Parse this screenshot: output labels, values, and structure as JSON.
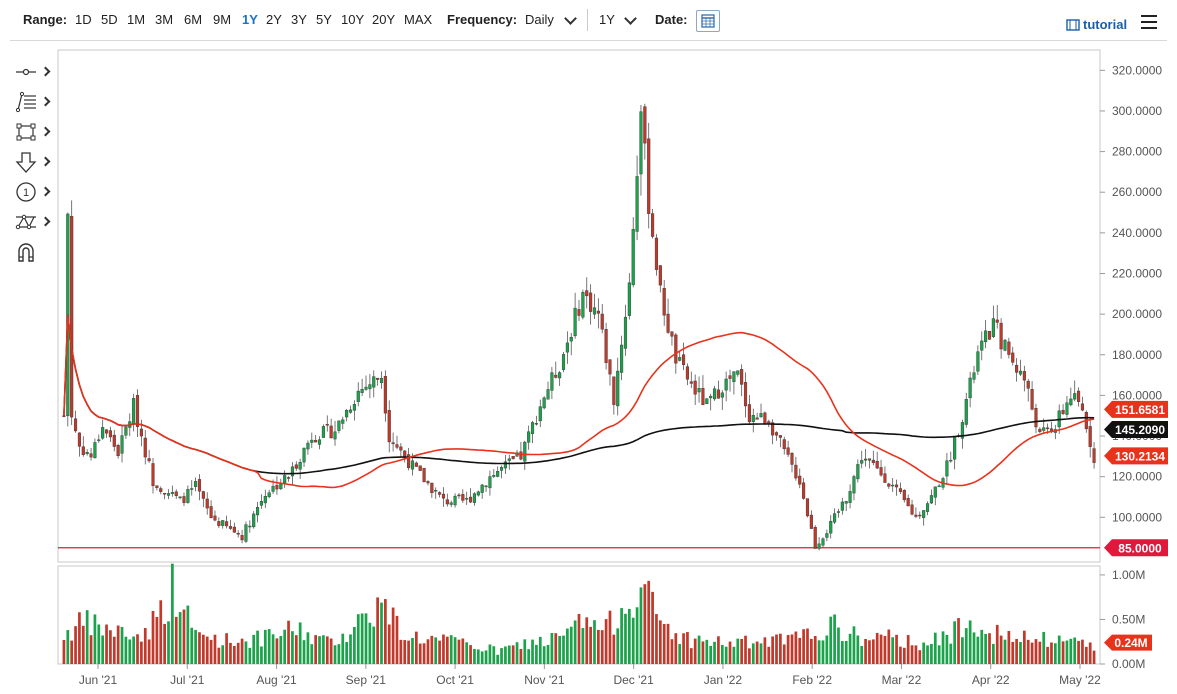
{
  "toolbar": {
    "range_label": "Range:",
    "ranges": [
      "1D",
      "5D",
      "1M",
      "3M",
      "6M",
      "9M",
      "1Y",
      "2Y",
      "3Y",
      "5Y",
      "10Y",
      "20Y",
      "MAX"
    ],
    "active_range": "1Y",
    "frequency_label": "Frequency:",
    "frequency_value": "Daily",
    "period_value": "1Y",
    "date_label": "Date:",
    "tutorial_label": "tutorial",
    "accent_color": "#1a73c8"
  },
  "drawing_tools": [
    "line-tool-icon",
    "fibonacci-tool-icon",
    "rectangle-tool-icon",
    "arrow-down-tool-icon",
    "numbered-marker-icon",
    "pattern-tool-icon",
    "magnet-icon"
  ],
  "chart_data": {
    "type": "candlestick",
    "x_tick_labels": [
      "Jun '21",
      "Jul '21",
      "Aug '21",
      "Sep '21",
      "Oct '21",
      "Nov '21",
      "Dec '21",
      "Jan '22",
      "Feb '22",
      "Mar '22",
      "Apr '22",
      "May '22"
    ],
    "price_axis": {
      "ticks": [
        "100.0000",
        "120.0000",
        "140.0000",
        "160.0000",
        "180.0000",
        "200.0000",
        "220.0000",
        "240.0000",
        "260.0000",
        "280.0000",
        "300.0000",
        "320.0000"
      ],
      "range": [
        78,
        330
      ]
    },
    "volume_axis": {
      "ticks": [
        "0.00M",
        "0.50M",
        "1.00M"
      ],
      "range": [
        0,
        1.1
      ]
    },
    "price_labels": {
      "ma50": "151.6581",
      "ma200": "145.2090",
      "last": "130.2134",
      "horizontal_line": "85.0000",
      "last_volume": "0.24M"
    },
    "horizontal_line_value": 85,
    "colors": {
      "up": "#1aa34a",
      "down": "#c0392b",
      "ma50": "#e8331c",
      "ma200": "#111111",
      "hline": "#e0183c",
      "label_red": "#e8331c",
      "label_black": "#111111",
      "label_hline": "#e0183c"
    },
    "price_anchors": [
      [
        0,
        150
      ],
      [
        1,
        250
      ],
      [
        2,
        150
      ],
      [
        4,
        135
      ],
      [
        7,
        130
      ],
      [
        10,
        145
      ],
      [
        14,
        132
      ],
      [
        18,
        155
      ],
      [
        23,
        118
      ],
      [
        30,
        108
      ],
      [
        34,
        115
      ],
      [
        38,
        100
      ],
      [
        42,
        95
      ],
      [
        46,
        91
      ],
      [
        52,
        112
      ],
      [
        58,
        120
      ],
      [
        64,
        140
      ],
      [
        70,
        143
      ],
      [
        76,
        162
      ],
      [
        82,
        170
      ],
      [
        84,
        140
      ],
      [
        90,
        125
      ],
      [
        98,
        108
      ],
      [
        104,
        108
      ],
      [
        110,
        120
      ],
      [
        118,
        130
      ],
      [
        124,
        160
      ],
      [
        128,
        175
      ],
      [
        134,
        210
      ],
      [
        138,
        200
      ],
      [
        142,
        158
      ],
      [
        146,
        215
      ],
      [
        149,
        300
      ],
      [
        151,
        255
      ],
      [
        154,
        210
      ],
      [
        158,
        178
      ],
      [
        162,
        165
      ],
      [
        166,
        155
      ],
      [
        170,
        165
      ],
      [
        174,
        170
      ],
      [
        177,
        150
      ],
      [
        182,
        148
      ],
      [
        186,
        132
      ],
      [
        190,
        118
      ],
      [
        194,
        86
      ],
      [
        198,
        96
      ],
      [
        202,
        110
      ],
      [
        206,
        130
      ],
      [
        212,
        120
      ],
      [
        216,
        110
      ],
      [
        220,
        100
      ],
      [
        224,
        110
      ],
      [
        228,
        125
      ],
      [
        232,
        150
      ],
      [
        236,
        180
      ],
      [
        240,
        195
      ],
      [
        244,
        180
      ],
      [
        248,
        168
      ],
      [
        252,
        140
      ],
      [
        256,
        145
      ],
      [
        260,
        160
      ],
      [
        263,
        152
      ],
      [
        266,
        130
      ]
    ],
    "volume_anchors": [
      [
        0,
        0.35
      ],
      [
        5,
        0.48
      ],
      [
        12,
        0.4
      ],
      [
        20,
        0.32
      ],
      [
        26,
        0.68
      ],
      [
        28,
        0.9
      ],
      [
        34,
        0.35
      ],
      [
        42,
        0.28
      ],
      [
        52,
        0.3
      ],
      [
        60,
        0.42
      ],
      [
        68,
        0.25
      ],
      [
        74,
        0.4
      ],
      [
        78,
        0.6
      ],
      [
        82,
        0.7
      ],
      [
        88,
        0.35
      ],
      [
        96,
        0.28
      ],
      [
        104,
        0.24
      ],
      [
        112,
        0.15
      ],
      [
        120,
        0.25
      ],
      [
        128,
        0.3
      ],
      [
        134,
        0.5
      ],
      [
        140,
        0.4
      ],
      [
        146,
        0.8
      ],
      [
        149,
        0.92
      ],
      [
        154,
        0.5
      ],
      [
        160,
        0.3
      ],
      [
        170,
        0.25
      ],
      [
        180,
        0.25
      ],
      [
        190,
        0.3
      ],
      [
        198,
        0.45
      ],
      [
        206,
        0.3
      ],
      [
        214,
        0.3
      ],
      [
        222,
        0.25
      ],
      [
        228,
        0.3
      ],
      [
        234,
        0.6
      ],
      [
        238,
        0.4
      ],
      [
        244,
        0.3
      ],
      [
        252,
        0.28
      ],
      [
        260,
        0.28
      ],
      [
        266,
        0.24
      ]
    ]
  }
}
